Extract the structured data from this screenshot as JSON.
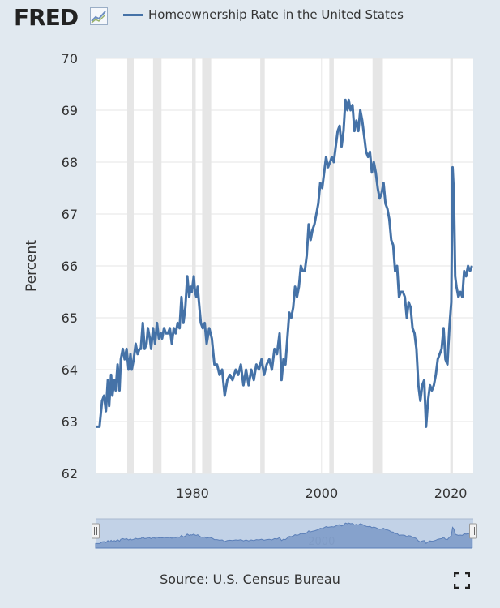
{
  "header": {
    "logo_text": "FRED",
    "logo_icon": "fred-trend-icon",
    "legend_label": "Homeownership Rate in the United States"
  },
  "source_text": "Source: U.S. Census Bureau",
  "icons": {
    "fullscreen": "fullscreen-icon"
  },
  "colors": {
    "series": "#4572a7",
    "recession": "#e6e6e6",
    "navigator_fill": "#7f9cc9",
    "navigator_mask": "#c2d2e7",
    "background": "#e1e9f0"
  },
  "navigator": {
    "tick_label": "2000"
  },
  "chart_data": {
    "type": "line",
    "title": "",
    "xlabel": "",
    "ylabel": "Percent",
    "ylim": [
      62,
      70
    ],
    "xlim": [
      1965,
      2023.5
    ],
    "y_ticks": [
      "62",
      "63",
      "64",
      "65",
      "66",
      "67",
      "68",
      "69",
      "70"
    ],
    "x_ticks": [
      "1980",
      "2000",
      "2020"
    ],
    "grid": true,
    "legend": "top",
    "recessions": [
      [
        1969.9,
        1970.9
      ],
      [
        1973.9,
        1975.2
      ],
      [
        1980.0,
        1980.5
      ],
      [
        1981.5,
        1982.9
      ],
      [
        1990.5,
        1991.2
      ],
      [
        2001.2,
        2001.9
      ],
      [
        2007.9,
        2009.5
      ],
      [
        2020.1,
        2020.3
      ]
    ],
    "series": [
      {
        "name": "Homeownership Rate in the United States",
        "x": [
          1965.0,
          1965.6,
          1966.0,
          1966.3,
          1966.6,
          1966.9,
          1967.1,
          1967.4,
          1967.6,
          1967.9,
          1968.1,
          1968.4,
          1968.7,
          1968.9,
          1969.2,
          1969.5,
          1969.8,
          1970.1,
          1970.4,
          1970.6,
          1970.9,
          1971.2,
          1971.5,
          1971.8,
          1972.0,
          1972.3,
          1972.6,
          1972.9,
          1973.1,
          1973.4,
          1973.6,
          1973.9,
          1974.2,
          1974.5,
          1974.8,
          1975.1,
          1975.3,
          1975.6,
          1975.9,
          1976.2,
          1976.5,
          1976.8,
          1977.1,
          1977.4,
          1977.7,
          1978.0,
          1978.3,
          1978.6,
          1978.9,
          1979.2,
          1979.5,
          1979.7,
          1979.9,
          1980.2,
          1980.4,
          1980.6,
          1980.8,
          1981.0,
          1981.3,
          1981.6,
          1981.9,
          1982.2,
          1982.6,
          1983.0,
          1983.4,
          1983.8,
          1984.2,
          1984.6,
          1985.0,
          1985.4,
          1985.8,
          1986.2,
          1986.7,
          1987.1,
          1987.5,
          1987.9,
          1988.3,
          1988.7,
          1989.1,
          1989.5,
          1989.9,
          1990.3,
          1990.7,
          1991.1,
          1991.5,
          1991.9,
          1992.3,
          1992.7,
          1993.1,
          1993.5,
          1993.8,
          1994.1,
          1994.4,
          1994.7,
          1995.0,
          1995.3,
          1995.6,
          1995.9,
          1996.2,
          1996.5,
          1996.8,
          1997.1,
          1997.4,
          1997.7,
          1998.0,
          1998.3,
          1998.6,
          1998.9,
          1999.2,
          1999.5,
          1999.8,
          2000.1,
          2000.4,
          2000.7,
          2001.0,
          2001.3,
          2001.6,
          2001.9,
          2002.2,
          2002.5,
          2002.8,
          2003.1,
          2003.4,
          2003.7,
          2004.0,
          2004.2,
          2004.5,
          2004.8,
          2005.1,
          2005.4,
          2005.7,
          2006.0,
          2006.3,
          2006.6,
          2006.9,
          2007.2,
          2007.5,
          2007.8,
          2008.1,
          2008.4,
          2008.7,
          2009.0,
          2009.3,
          2009.6,
          2009.9,
          2010.2,
          2010.5,
          2010.8,
          2011.1,
          2011.4,
          2011.7,
          2012.0,
          2012.3,
          2012.6,
          2012.9,
          2013.2,
          2013.5,
          2013.8,
          2014.1,
          2014.4,
          2014.7,
          2015.0,
          2015.3,
          2015.6,
          2015.9,
          2016.2,
          2016.5,
          2016.8,
          2017.1,
          2017.4,
          2017.7,
          2018.0,
          2018.3,
          2018.6,
          2018.9,
          2019.2,
          2019.5,
          2019.8,
          2020.1,
          2020.3,
          2020.5,
          2020.7,
          2020.9,
          2021.2,
          2021.5,
          2021.8,
          2022.1,
          2022.4,
          2022.7,
          2023.0,
          2023.3
        ],
        "values": [
          62.9,
          62.9,
          63.4,
          63.5,
          63.2,
          63.8,
          63.3,
          63.9,
          63.5,
          63.8,
          63.6,
          64.1,
          63.6,
          64.2,
          64.4,
          64.2,
          64.4,
          64.0,
          64.3,
          64.0,
          64.2,
          64.5,
          64.3,
          64.4,
          64.4,
          64.9,
          64.4,
          64.5,
          64.8,
          64.6,
          64.4,
          64.8,
          64.5,
          64.9,
          64.6,
          64.7,
          64.6,
          64.8,
          64.7,
          64.7,
          64.8,
          64.5,
          64.8,
          64.7,
          64.9,
          64.8,
          65.4,
          64.9,
          65.2,
          65.8,
          65.4,
          65.6,
          65.5,
          65.8,
          65.5,
          65.4,
          65.6,
          65.3,
          64.9,
          64.8,
          64.9,
          64.5,
          64.8,
          64.6,
          64.1,
          64.1,
          63.9,
          64.0,
          63.5,
          63.8,
          63.9,
          63.8,
          64.0,
          63.9,
          64.1,
          63.7,
          64.0,
          63.7,
          64.0,
          63.8,
          64.1,
          64.0,
          64.2,
          63.9,
          64.1,
          64.2,
          64.0,
          64.4,
          64.3,
          64.7,
          63.8,
          64.2,
          64.1,
          64.6,
          65.1,
          65.0,
          65.2,
          65.6,
          65.4,
          65.6,
          66.0,
          65.9,
          65.9,
          66.2,
          66.8,
          66.5,
          66.7,
          66.8,
          67.0,
          67.2,
          67.6,
          67.5,
          67.8,
          68.1,
          67.9,
          68.0,
          68.1,
          68.0,
          68.3,
          68.6,
          68.7,
          68.3,
          68.6,
          69.2,
          69.0,
          69.2,
          69.0,
          69.1,
          68.6,
          68.8,
          68.6,
          69.0,
          68.8,
          68.5,
          68.2,
          68.1,
          68.2,
          67.8,
          68.0,
          67.8,
          67.5,
          67.3,
          67.4,
          67.6,
          67.2,
          67.1,
          66.9,
          66.5,
          66.4,
          65.9,
          66.0,
          65.4,
          65.5,
          65.5,
          65.4,
          65.0,
          65.3,
          65.2,
          64.8,
          64.7,
          64.4,
          63.7,
          63.4,
          63.7,
          63.8,
          62.9,
          63.4,
          63.7,
          63.6,
          63.7,
          63.9,
          64.2,
          64.3,
          64.4,
          64.8,
          64.2,
          64.1,
          64.8,
          65.3,
          67.9,
          67.4,
          65.8,
          65.6,
          65.4,
          65.5,
          65.4,
          65.9,
          65.8,
          66.0,
          65.9,
          66.0
        ]
      }
    ]
  }
}
